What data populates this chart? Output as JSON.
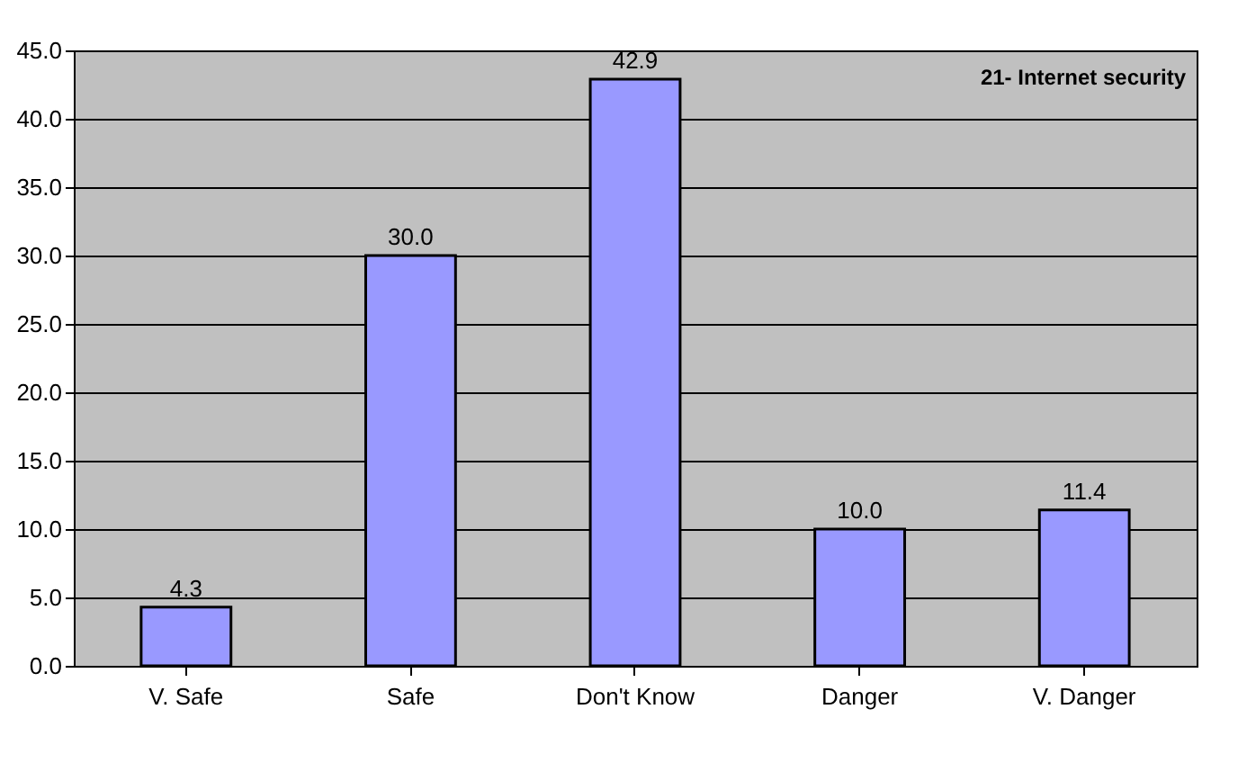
{
  "chart_data": {
    "type": "bar",
    "title": "21- Internet security",
    "categories": [
      "V. Safe",
      "Safe",
      "Don't Know",
      "Danger",
      "V. Danger"
    ],
    "values": [
      4.3,
      30.0,
      42.9,
      10.0,
      11.4
    ],
    "value_labels": [
      "4.3",
      "30.0",
      "42.9",
      "10.0",
      "11.4"
    ],
    "color": "#9999ff",
    "ylim": [
      0,
      45
    ],
    "yticks": [
      {
        "value": 0,
        "label": "0.0"
      },
      {
        "value": 5,
        "label": "5.0"
      },
      {
        "value": 10,
        "label": "10.0"
      },
      {
        "value": 15,
        "label": "15.0"
      },
      {
        "value": 20,
        "label": "20.0"
      },
      {
        "value": 25,
        "label": "25.0"
      },
      {
        "value": 30,
        "label": "30.0"
      },
      {
        "value": 35,
        "label": "35.0"
      },
      {
        "value": 40,
        "label": "40.0"
      },
      {
        "value": 45,
        "label": "45.0"
      }
    ],
    "grid": "y"
  }
}
